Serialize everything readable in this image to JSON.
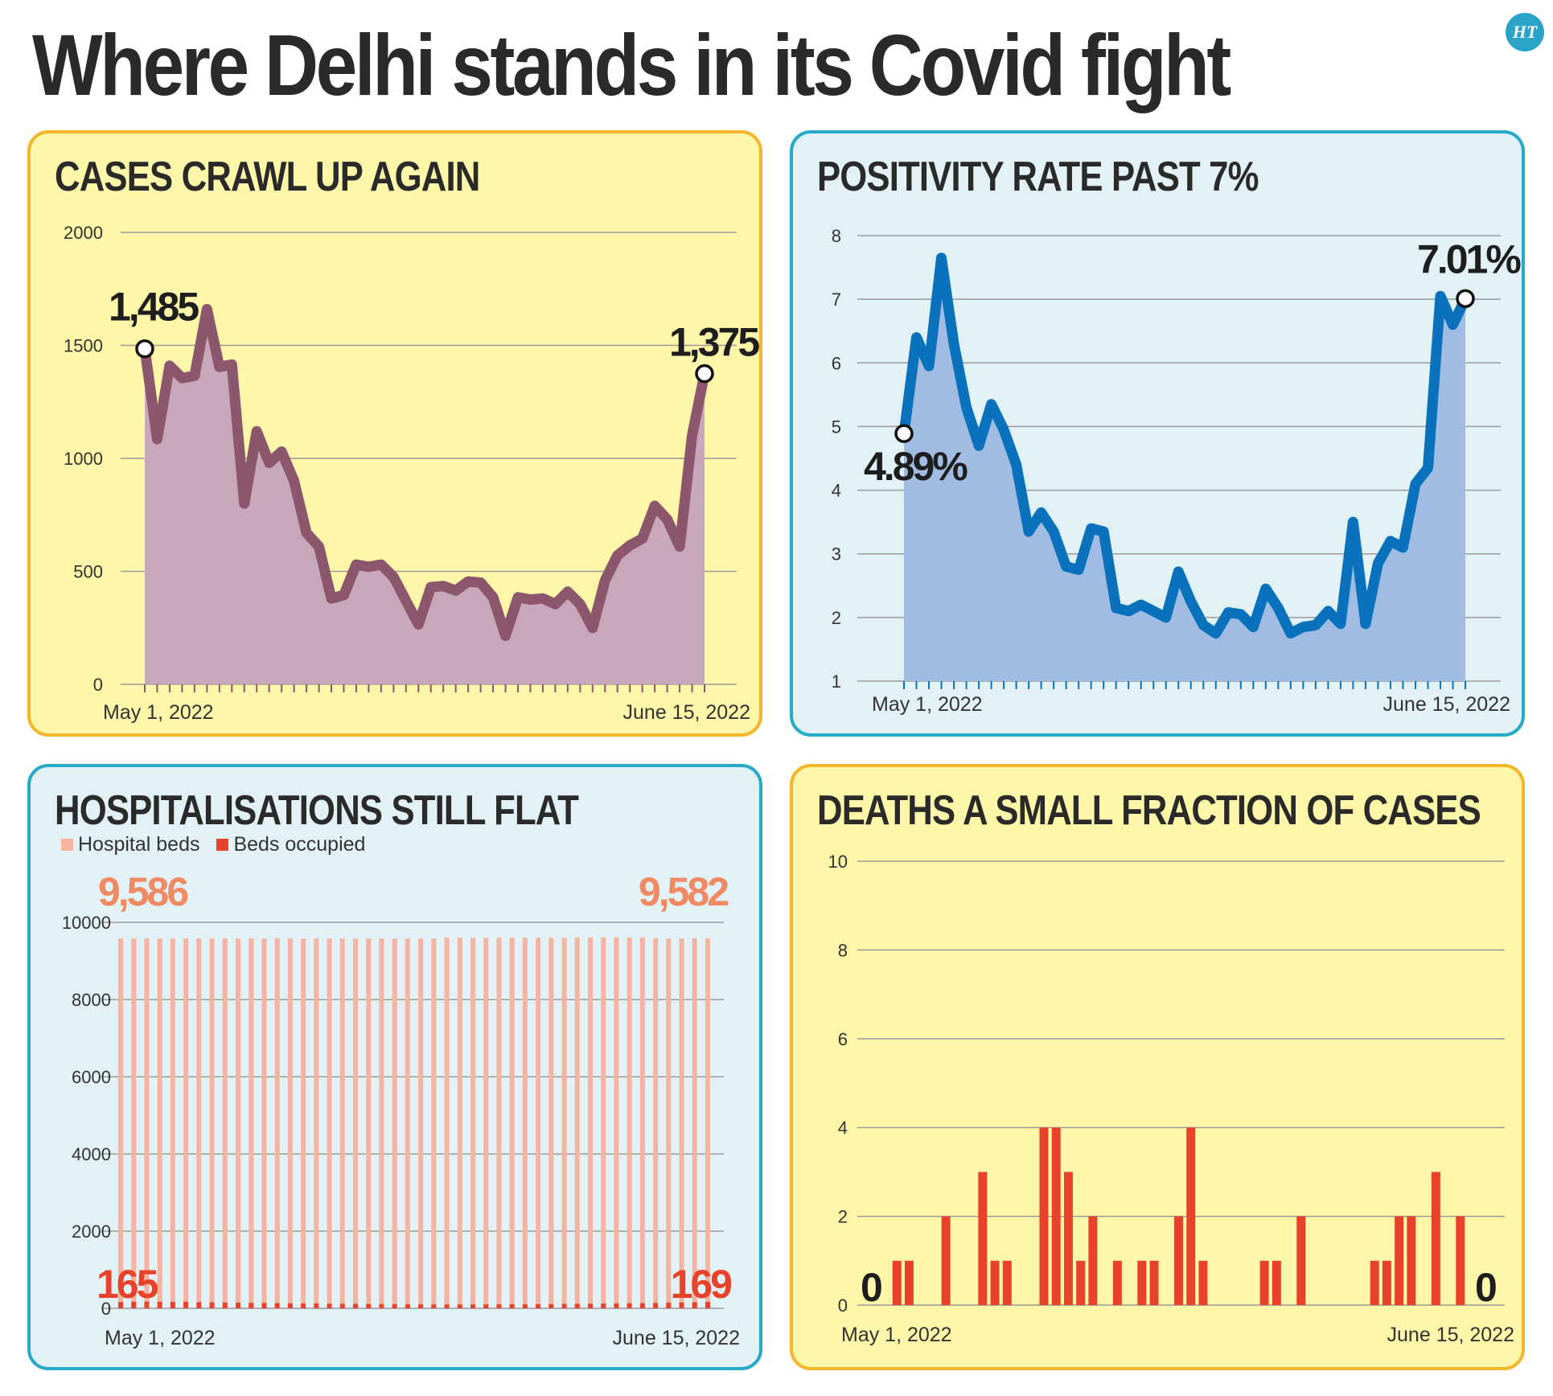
{
  "title": "Where Delhi stands in its Covid fight",
  "logo": "HT",
  "colors": {
    "cases": "#8c566c",
    "cases_fill": "#c9a7ba",
    "positivity": "#0a72bd",
    "positivity_fill": "#a1bce3",
    "beds": "#f5b49f",
    "occupied": "#e8432a",
    "beds_label": "#f08a62",
    "occupied_label": "#e8432a",
    "grid": "#9a9a9a"
  },
  "chart_data": [
    {
      "type": "area",
      "title": "CASES CRAWL UP AGAIN",
      "x_start_label": "May 1, 2022",
      "x_end_label": "June 15, 2022",
      "ylim": [
        0,
        2000
      ],
      "yticks": [
        0,
        500,
        1000,
        1500,
        2000
      ],
      "values": [
        1485,
        1085,
        1410,
        1355,
        1365,
        1660,
        1405,
        1415,
        800,
        1120,
        980,
        1030,
        900,
        670,
        610,
        380,
        395,
        530,
        520,
        530,
        475,
        370,
        265,
        430,
        435,
        415,
        455,
        450,
        385,
        215,
        385,
        375,
        380,
        355,
        410,
        355,
        250,
        460,
        570,
        615,
        645,
        790,
        730,
        610,
        1100,
        1375
      ],
      "annotations": [
        {
          "label": "1,485",
          "value": 1485,
          "at": "first"
        },
        {
          "label": "1,375",
          "value": 1375,
          "at": "last"
        }
      ]
    },
    {
      "type": "area",
      "title": "POSITIVITY RATE PAST 7%",
      "x_start_label": "May 1, 2022",
      "x_end_label": "June 15, 2022",
      "ylim": [
        1,
        8
      ],
      "yticks": [
        1,
        2,
        3,
        4,
        5,
        6,
        7,
        8
      ],
      "values": [
        4.89,
        6.4,
        5.95,
        7.65,
        6.3,
        5.3,
        4.7,
        5.35,
        4.95,
        4.4,
        3.35,
        3.65,
        3.35,
        2.8,
        2.75,
        3.4,
        3.35,
        2.15,
        2.1,
        2.2,
        2.1,
        2.0,
        2.72,
        2.25,
        1.88,
        1.75,
        2.08,
        2.05,
        1.85,
        2.45,
        2.15,
        1.75,
        1.85,
        1.88,
        2.1,
        1.9,
        3.5,
        1.9,
        2.85,
        3.2,
        3.1,
        4.1,
        4.35,
        7.05,
        6.6,
        7.01
      ],
      "annotations": [
        {
          "label": "4.89%",
          "value": 4.89,
          "at": "first"
        },
        {
          "label": "7.01%",
          "value": 7.01,
          "at": "last"
        }
      ]
    },
    {
      "type": "bar",
      "title": "HOSPITALISATIONS STILL FLAT",
      "x_start_label": "May 1, 2022",
      "x_end_label": "June 15, 2022",
      "ylim": [
        0,
        10000
      ],
      "yticks": [
        0,
        2000,
        4000,
        6000,
        8000,
        10000
      ],
      "series": [
        {
          "name": "Hospital beds",
          "values": [
            9586,
            9582,
            9585,
            9580,
            9584,
            9586,
            9583,
            9581,
            9585,
            9582,
            9584,
            9580,
            9586,
            9583,
            9581,
            9585,
            9582,
            9584,
            9580,
            9586,
            9583,
            9581,
            9585,
            9582,
            9584,
            9600,
            9600,
            9600,
            9600,
            9600,
            9600,
            9600,
            9600,
            9600,
            9600,
            9610,
            9610,
            9610,
            9610,
            9610,
            9610,
            9590,
            9585,
            9583,
            9584,
            9582
          ]
        },
        {
          "name": "Beds occupied",
          "values": [
            165,
            170,
            175,
            172,
            168,
            170,
            160,
            155,
            150,
            145,
            140,
            138,
            135,
            130,
            128,
            125,
            120,
            118,
            115,
            112,
            110,
            108,
            105,
            102,
            100,
            100,
            100,
            100,
            102,
            104,
            105,
            108,
            110,
            112,
            115,
            118,
            120,
            125,
            128,
            130,
            135,
            140,
            150,
            155,
            160,
            169
          ]
        }
      ],
      "annotations": [
        {
          "label": "9,586",
          "series": "Hospital beds",
          "at": "first"
        },
        {
          "label": "9,582",
          "series": "Hospital beds",
          "at": "last"
        },
        {
          "label": "165",
          "series": "Beds occupied",
          "at": "first"
        },
        {
          "label": "169",
          "series": "Beds occupied",
          "at": "last"
        }
      ]
    },
    {
      "type": "bar",
      "title": "DEATHS A SMALL FRACTION OF CASES",
      "x_start_label": "May 1, 2022",
      "x_end_label": "June 15, 2022",
      "ylim": [
        0,
        10
      ],
      "yticks": [
        0,
        2,
        4,
        6,
        8,
        10
      ],
      "values": [
        0,
        1,
        1,
        0,
        0,
        2,
        0,
        0,
        3,
        1,
        1,
        0,
        0,
        4,
        4,
        3,
        1,
        2,
        0,
        1,
        0,
        1,
        1,
        0,
        2,
        4,
        1,
        0,
        0,
        0,
        0,
        1,
        1,
        0,
        2,
        0,
        0,
        0,
        0,
        0,
        1,
        1,
        2,
        2,
        0,
        3,
        0,
        2,
        0
      ],
      "annotations": [
        {
          "label": "0",
          "at": "first"
        },
        {
          "label": "0",
          "at": "last"
        }
      ]
    }
  ]
}
